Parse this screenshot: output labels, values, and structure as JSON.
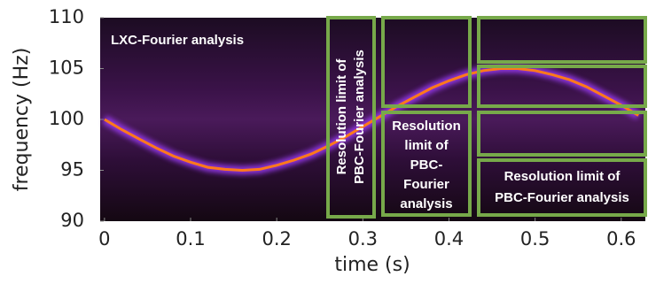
{
  "chart_data": {
    "type": "line",
    "xlabel": "time (s)",
    "ylabel": "frequency (Hz)",
    "x": [
      0,
      0.02,
      0.04,
      0.06,
      0.08,
      0.1,
      0.12,
      0.14,
      0.16,
      0.18,
      0.2,
      0.22,
      0.24,
      0.26,
      0.28,
      0.3,
      0.32,
      0.34,
      0.36,
      0.38,
      0.4,
      0.42,
      0.44,
      0.46,
      0.48,
      0.5,
      0.52,
      0.54,
      0.56,
      0.58,
      0.6,
      0.62
    ],
    "values": [
      100,
      99.0,
      98.1,
      97.2,
      96.4,
      95.8,
      95.3,
      95.1,
      95.0,
      95.1,
      95.5,
      96.0,
      96.6,
      97.4,
      98.3,
      99.3,
      100.3,
      101.3,
      102.2,
      103.1,
      103.8,
      104.4,
      104.8,
      105.0,
      105.0,
      104.8,
      104.4,
      103.9,
      103.2,
      102.3,
      101.4,
      100.4
    ],
    "color": "#ff7a1a",
    "xlim": [
      -0.005,
      0.628
    ],
    "ylim": [
      90,
      110
    ],
    "xticks": [
      0,
      0.1,
      0.2,
      0.3,
      0.4,
      0.5,
      0.6
    ],
    "yticks": [
      90,
      95,
      100,
      105,
      110
    ],
    "annotations": [
      [
        "LXC-Fourier analysis"
      ],
      [
        "Resolution limit of",
        "PBC-Fourier analysis"
      ],
      [
        "Resolution",
        "limit of",
        "PBC-",
        "Fourier",
        "analysis"
      ],
      [
        "Resolution limit of",
        "PBC-Fourier analysis"
      ]
    ]
  }
}
